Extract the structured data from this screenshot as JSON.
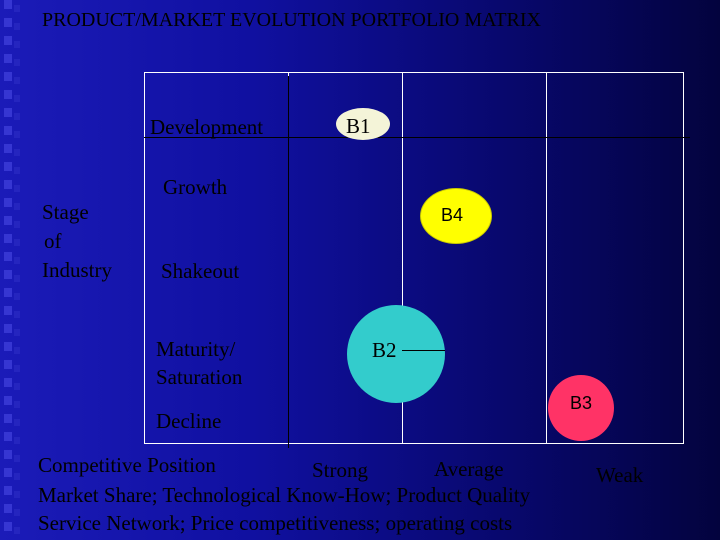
{
  "title": "PRODUCT/MARKET EVOLUTION PORTFOLIO MATRIX",
  "y_axis_label": [
    "Stage",
    "of",
    "Industry"
  ],
  "stages": [
    "Development",
    "Growth",
    "Shakeout",
    "Maturity/",
    "Saturation",
    "Decline"
  ],
  "competitive_position_label": "Competitive Position",
  "positions": [
    "Strong",
    "Average",
    "Weak"
  ],
  "criteria_line1": "Market Share; Technological Know-How; Product Quality",
  "criteria_line2": "Service Network; Price competitiveness; operating costs",
  "bubbles": [
    {
      "label": "B1",
      "color": "#f4f4d8"
    },
    {
      "label": "B4",
      "color": "#ffff00"
    },
    {
      "label": "B2",
      "color": "#33cccc"
    },
    {
      "label": "B3",
      "color": "#ff3366"
    }
  ],
  "colors": {
    "background": "#1010a0",
    "grid": "#ffffff",
    "text": "#000000"
  }
}
